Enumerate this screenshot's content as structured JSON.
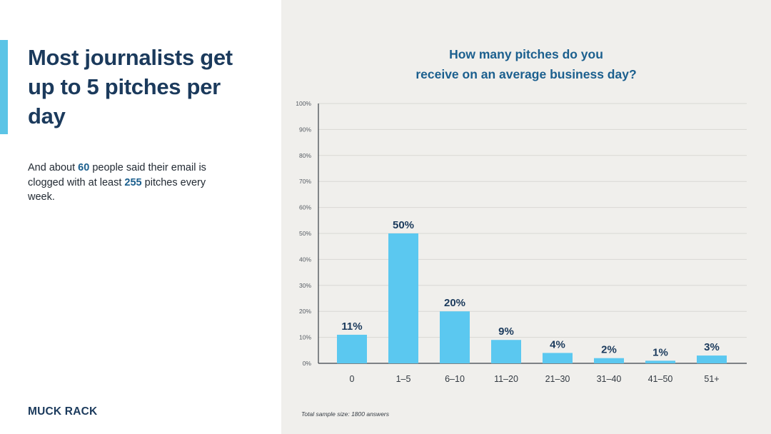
{
  "left": {
    "headline": "Most journalists get up to 5 pitches per day",
    "subtext": {
      "part1": "And about ",
      "num1": "60",
      "part2": " people said their email is clogged with at least ",
      "num2": "255",
      "part3": " pitches every week."
    },
    "logo": "MUCK RACK"
  },
  "colors": {
    "accent": "#5bc4e6",
    "bar": "#5bc8f0",
    "heading": "#1b3a5c",
    "chart_title": "#1b5f8e",
    "panel_bg": "#f0efec"
  },
  "chart_data": {
    "type": "bar",
    "title_lines": [
      "How many pitches do you",
      "receive on an average business day?"
    ],
    "categories": [
      "0",
      "1–5",
      "6–10",
      "11–20",
      "21–30",
      "31–40",
      "41–50",
      "51+"
    ],
    "values": [
      11,
      50,
      20,
      9,
      4,
      2,
      1,
      3
    ],
    "data_labels": [
      "11%",
      "50%",
      "20%",
      "9%",
      "4%",
      "2%",
      "1%",
      "3%"
    ],
    "yticks": [
      "0%",
      "10%",
      "20%",
      "30%",
      "40%",
      "50%",
      "60%",
      "70%",
      "80%",
      "90%",
      "100%"
    ],
    "ylim": [
      0,
      100
    ],
    "grid": true,
    "footnote": "Total sample size: 1800 answers"
  }
}
